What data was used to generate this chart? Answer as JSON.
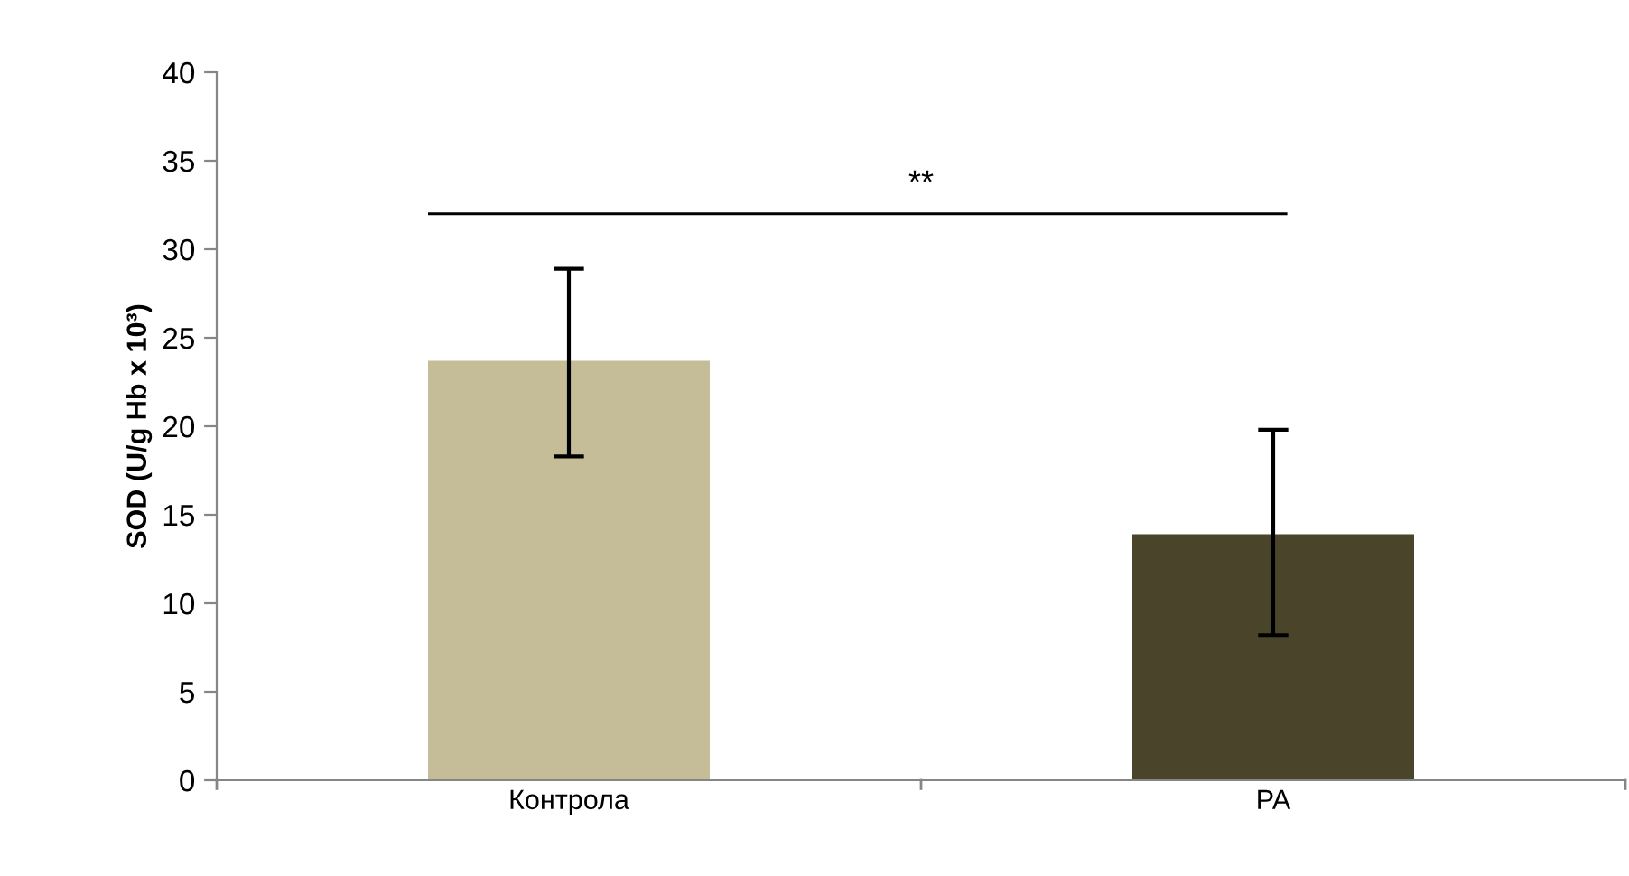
{
  "chart_data": {
    "type": "bar",
    "ylabel": "SOD (U/g Hb x 10³)",
    "categories": [
      "Контрола",
      "PA"
    ],
    "values": [
      23.7,
      13.9
    ],
    "colors": [
      "#c4bd97",
      "#4a452a"
    ],
    "errors": [
      [
        18.3,
        28.9
      ],
      [
        8.2,
        19.8
      ]
    ],
    "ylim": [
      0,
      40
    ],
    "yticks": [
      0,
      5,
      10,
      15,
      20,
      25,
      30,
      35,
      40
    ],
    "annotations": [
      "**"
    ],
    "grid": false
  }
}
